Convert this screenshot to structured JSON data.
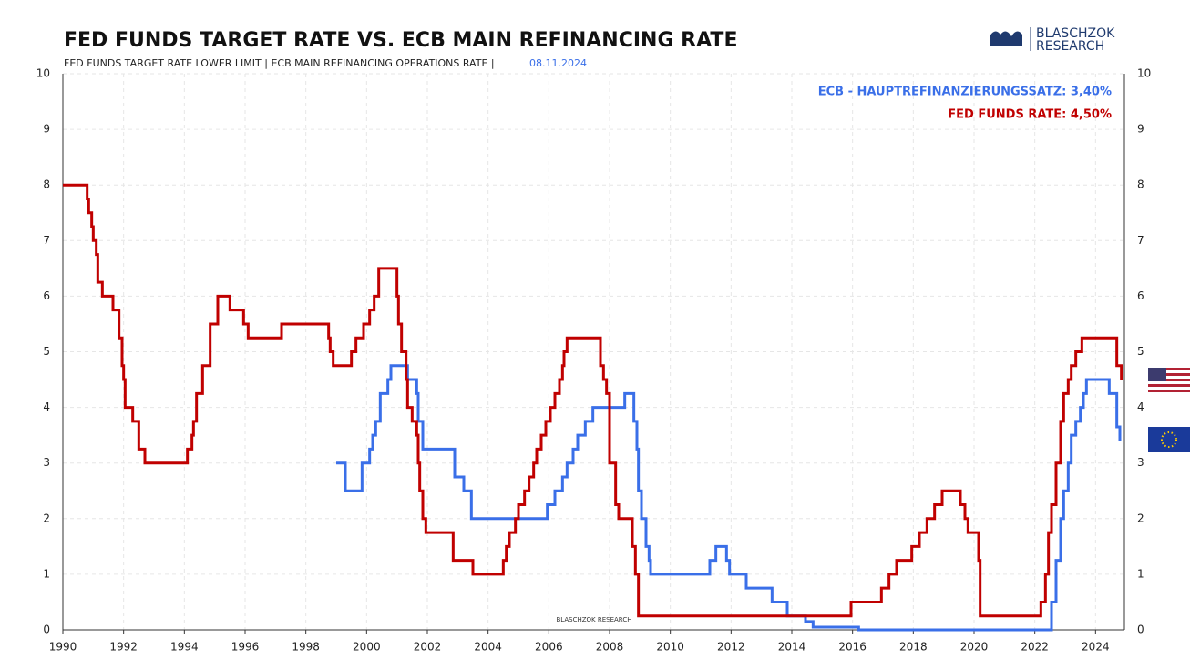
{
  "chart_data": {
    "type": "step-line",
    "title": "FED FUNDS TARGET RATE  VS.  ECB MAIN REFINANCING RATE",
    "subtitle": "FED FUNDS TARGET RATE LOWER LIMIT | ECB MAIN REFINANCING OPERATIONS RATE |",
    "date": "08.11.2024",
    "watermark": "BLASCHZOK   RESEARCH",
    "logo": [
      "BLASCHZOK",
      "RESEARCH"
    ],
    "xlim": [
      1990,
      2024.95
    ],
    "xticks": [
      1990,
      1992,
      1994,
      1996,
      1998,
      2000,
      2002,
      2004,
      2006,
      2008,
      2010,
      2012,
      2014,
      2016,
      2018,
      2020,
      2022,
      2024
    ],
    "ylim": [
      0,
      10
    ],
    "yticks": [
      0,
      1,
      2,
      3,
      4,
      5,
      6,
      7,
      8,
      9,
      10
    ],
    "y2lim": [
      0,
      10
    ],
    "y2ticks": [
      0,
      1,
      2,
      3,
      4,
      5,
      6,
      7,
      8,
      9,
      10
    ],
    "grid": true,
    "legend": "top-right",
    "series": [
      {
        "name": "FED FUNDS RATE: 4,50%",
        "color": "#c00000",
        "x": [
          1990.0,
          1990.8,
          1990.85,
          1990.95,
          1991.0,
          1991.1,
          1991.15,
          1991.3,
          1991.65,
          1991.85,
          1991.95,
          1992.0,
          1992.05,
          1992.3,
          1992.5,
          1992.7,
          1994.1,
          1994.25,
          1994.3,
          1994.4,
          1994.6,
          1994.85,
          1995.1,
          1995.5,
          1995.95,
          1996.1,
          1997.2,
          1998.75,
          1998.8,
          1998.9,
          1999.5,
          1999.65,
          1999.9,
          2000.1,
          2000.25,
          2000.4,
          2001.0,
          2001.05,
          2001.15,
          2001.3,
          2001.35,
          2001.5,
          2001.65,
          2001.7,
          2001.75,
          2001.85,
          2001.95,
          2002.85,
          2003.5,
          2004.5,
          2004.6,
          2004.7,
          2004.9,
          2005.0,
          2005.2,
          2005.35,
          2005.5,
          2005.6,
          2005.75,
          2005.9,
          2006.05,
          2006.2,
          2006.35,
          2006.45,
          2006.5,
          2006.6,
          2007.7,
          2007.8,
          2007.9,
          2008.0,
          2008.2,
          2008.3,
          2008.75,
          2008.85,
          2008.95,
          2015.95,
          2016.95,
          2017.2,
          2017.45,
          2017.95,
          2018.2,
          2018.45,
          2018.7,
          2018.95,
          2019.55,
          2019.7,
          2019.8,
          2020.15,
          2020.2,
          2022.2,
          2022.35,
          2022.45,
          2022.55,
          2022.7,
          2022.85,
          2022.95,
          2023.1,
          2023.2,
          2023.35,
          2023.55,
          2024.7,
          2024.85
        ],
        "values": [
          8.0,
          7.75,
          7.5,
          7.25,
          7.0,
          6.75,
          6.25,
          6.0,
          5.75,
          5.25,
          4.75,
          4.5,
          4.0,
          3.75,
          3.25,
          3.0,
          3.25,
          3.5,
          3.75,
          4.25,
          4.75,
          5.5,
          6.0,
          5.75,
          5.5,
          5.25,
          5.5,
          5.25,
          5.0,
          4.75,
          5.0,
          5.25,
          5.5,
          5.75,
          6.0,
          6.5,
          6.0,
          5.5,
          5.0,
          4.5,
          4.0,
          3.75,
          3.5,
          3.0,
          2.5,
          2.0,
          1.75,
          1.25,
          1.0,
          1.25,
          1.5,
          1.75,
          2.0,
          2.25,
          2.5,
          2.75,
          3.0,
          3.25,
          3.5,
          3.75,
          4.0,
          4.25,
          4.5,
          4.75,
          5.0,
          5.25,
          4.75,
          4.5,
          4.25,
          3.0,
          2.25,
          2.0,
          1.5,
          1.0,
          0.25,
          0.5,
          0.75,
          1.0,
          1.25,
          1.5,
          1.75,
          2.0,
          2.25,
          2.5,
          2.25,
          2.0,
          1.75,
          1.25,
          0.25,
          0.5,
          1.0,
          1.75,
          2.25,
          3.0,
          3.75,
          4.25,
          4.5,
          4.75,
          5.0,
          5.25,
          4.75,
          4.5
        ]
      },
      {
        "name": "ECB - HAUPTREFINANZIERUNGSSATZ: 3,40%",
        "color": "#3a6fe8",
        "x": [
          1999.0,
          1999.3,
          1999.85,
          2000.1,
          2000.2,
          2000.3,
          2000.45,
          2000.7,
          2000.8,
          2001.35,
          2001.65,
          2001.7,
          2001.85,
          2002.9,
          2003.2,
          2003.45,
          2005.95,
          2006.2,
          2006.45,
          2006.6,
          2006.8,
          2006.95,
          2007.2,
          2007.45,
          2008.5,
          2008.8,
          2008.9,
          2008.95,
          2009.05,
          2009.2,
          2009.3,
          2009.35,
          2011.3,
          2011.5,
          2011.85,
          2011.95,
          2012.5,
          2013.35,
          2013.85,
          2014.45,
          2014.7,
          2016.2,
          2022.55,
          2022.7,
          2022.85,
          2022.95,
          2023.1,
          2023.2,
          2023.35,
          2023.5,
          2023.6,
          2023.7,
          2024.45,
          2024.7,
          2024.8
        ],
        "values": [
          3.0,
          2.5,
          3.0,
          3.25,
          3.5,
          3.75,
          4.25,
          4.5,
          4.75,
          4.5,
          4.25,
          3.75,
          3.25,
          2.75,
          2.5,
          2.0,
          2.25,
          2.5,
          2.75,
          3.0,
          3.25,
          3.5,
          3.75,
          4.0,
          4.25,
          3.75,
          3.25,
          2.5,
          2.0,
          1.5,
          1.25,
          1.0,
          1.25,
          1.5,
          1.25,
          1.0,
          0.75,
          0.5,
          0.25,
          0.15,
          0.05,
          0.0,
          0.5,
          1.25,
          2.0,
          2.5,
          3.0,
          3.5,
          3.75,
          4.0,
          4.25,
          4.5,
          4.25,
          3.65,
          3.4
        ]
      }
    ]
  }
}
